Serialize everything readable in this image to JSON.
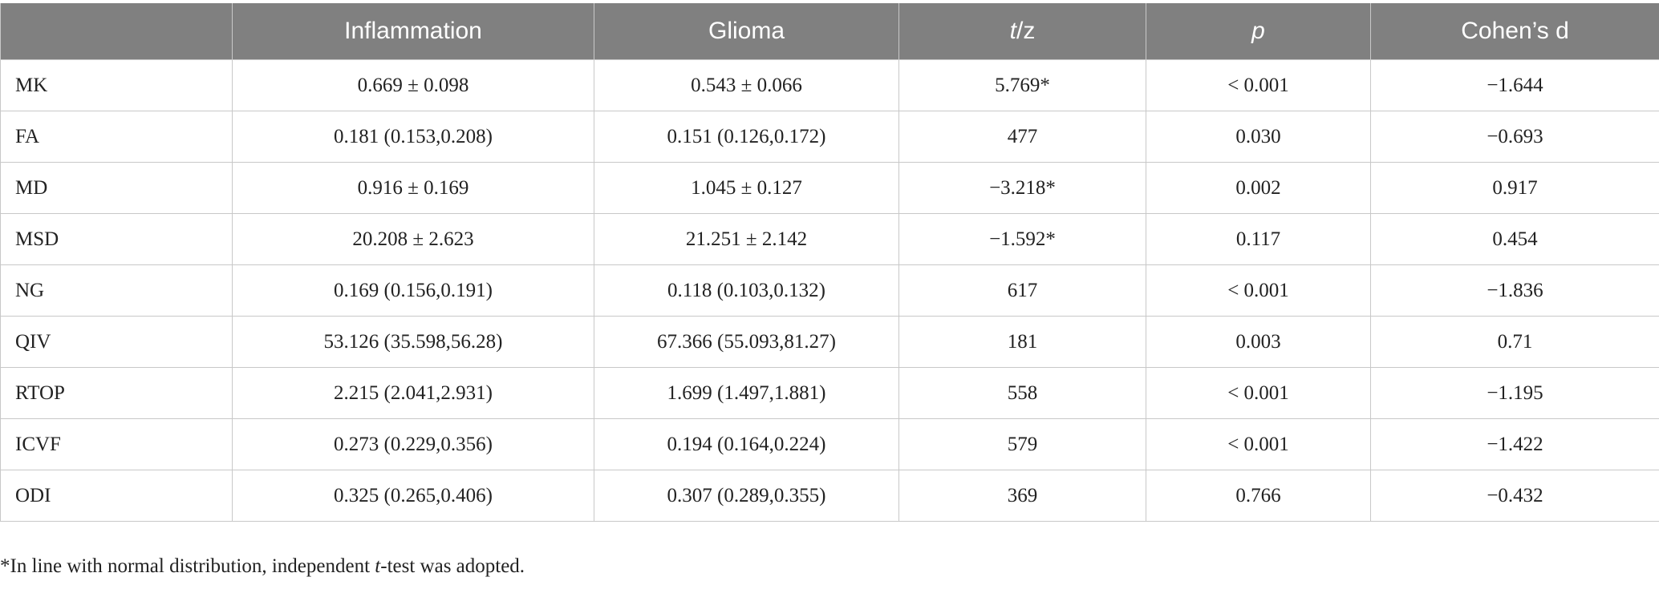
{
  "table": {
    "header": [
      "Inflammation",
      "Glioma",
      [
        "t",
        "/z"
      ],
      "p",
      "Cohen’s d"
    ],
    "rows": [
      [
        "MK",
        "0.669 ± 0.098",
        "0.543 ± 0.066",
        "5.769*",
        "< 0.001",
        "−1.644"
      ],
      [
        "FA",
        "0.181 (0.153,0.208)",
        "0.151 (0.126,0.172)",
        "477",
        "0.030",
        "−0.693"
      ],
      [
        "MD",
        "0.916 ± 0.169",
        "1.045 ± 0.127",
        "−3.218*",
        "0.002",
        "0.917"
      ],
      [
        "MSD",
        "20.208 ± 2.623",
        "21.251 ± 2.142",
        "−1.592*",
        "0.117",
        "0.454"
      ],
      [
        "NG",
        "0.169 (0.156,0.191)",
        "0.118 (0.103,0.132)",
        "617",
        "< 0.001",
        "−1.836"
      ],
      [
        "QIV",
        "53.126 (35.598,56.28)",
        "67.366 (55.093,81.27)",
        "181",
        "0.003",
        "0.71"
      ],
      [
        "RTOP",
        "2.215 (2.041,2.931)",
        "1.699 (1.497,1.881)",
        "558",
        "< 0.001",
        "−1.195"
      ],
      [
        "ICVF",
        "0.273 (0.229,0.356)",
        "0.194 (0.164,0.224)",
        "579",
        "< 0.001",
        "−1.422"
      ],
      [
        "ODI",
        "0.325 (0.265,0.406)",
        "0.307 (0.289,0.355)",
        "369",
        "0.766",
        "−0.432"
      ]
    ],
    "footnote": [
      "*In line with normal distribution, independent ",
      "t",
      "-test was adopted."
    ]
  }
}
